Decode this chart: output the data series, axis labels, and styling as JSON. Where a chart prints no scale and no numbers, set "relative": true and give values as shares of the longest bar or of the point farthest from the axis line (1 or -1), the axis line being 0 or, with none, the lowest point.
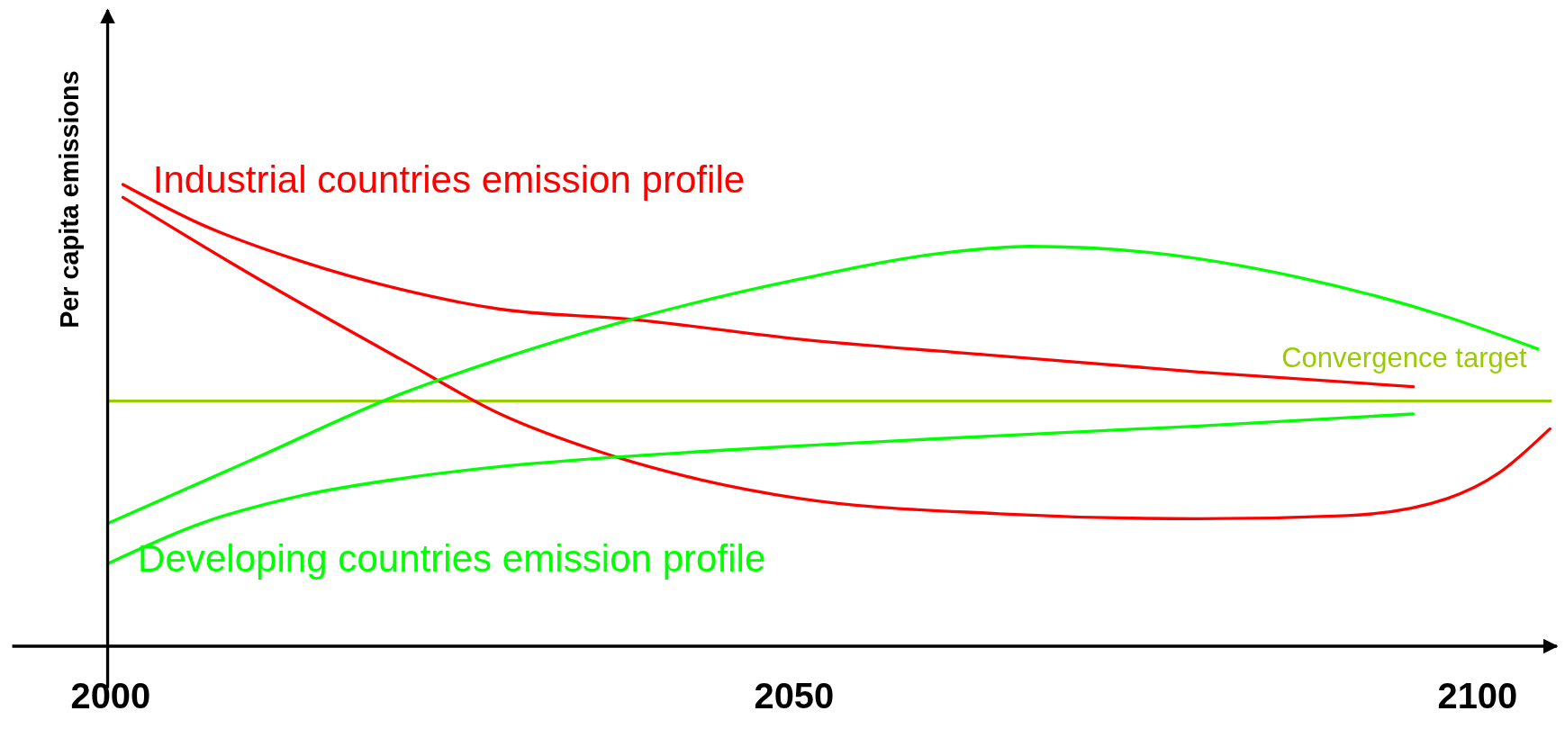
{
  "chart_data": {
    "type": "line",
    "relative": true,
    "ylabel": "Per capita emissions",
    "xlim": [
      1992.8,
      2105.8
    ],
    "xticks": [
      2000,
      2050,
      2100
    ],
    "series": [
      {
        "name": "Industrial countries emission profile",
        "color": "#ff0000",
        "x": [
          2000.9,
          2006.6,
          2013.9,
          2021.2,
          2028.5,
          2038.1,
          2050.4,
          2065.0,
          2079.6,
          2095.3
        ],
        "values": [
          1.0,
          0.914,
          0.834,
          0.773,
          0.73,
          0.708,
          0.665,
          0.629,
          0.594,
          0.562
        ]
      },
      {
        "color": "#ff0000",
        "x": [
          2000.9,
          2010.2,
          2021.2,
          2028.5,
          2035.8,
          2043.1,
          2050.4,
          2065.0,
          2079.6,
          2090.5,
          2097.8,
          2101.5,
          2105.3
        ],
        "values": [
          0.972,
          0.806,
          0.622,
          0.503,
          0.421,
          0.361,
          0.32,
          0.287,
          0.276,
          0.283,
          0.32,
          0.374,
          0.471
        ]
      },
      {
        "color": "#00ff00",
        "x": [
          1999.8,
          2010.2,
          2021.2,
          2028.5,
          2038.1,
          2050.4,
          2061.3,
          2067.2,
          2075.9,
          2086.9,
          2097.8,
          2104.4
        ],
        "values": [
          0.266,
          0.402,
          0.546,
          0.622,
          0.708,
          0.795,
          0.853,
          0.866,
          0.853,
          0.799,
          0.713,
          0.644
        ]
      },
      {
        "name": "Developing countries emission profile",
        "color": "#00ff00",
        "x": [
          1999.8,
          2006.6,
          2013.9,
          2021.2,
          2028.5,
          2037.2,
          2050.4,
          2065.0,
          2079.6,
          2095.3
        ],
        "values": [
          0.179,
          0.266,
          0.326,
          0.363,
          0.389,
          0.41,
          0.434,
          0.456,
          0.477,
          0.503
        ]
      }
    ],
    "ref_lines": [
      {
        "axis": "y",
        "value": 0.531,
        "label": "Convergence target",
        "color": "#99cc00"
      }
    ]
  }
}
